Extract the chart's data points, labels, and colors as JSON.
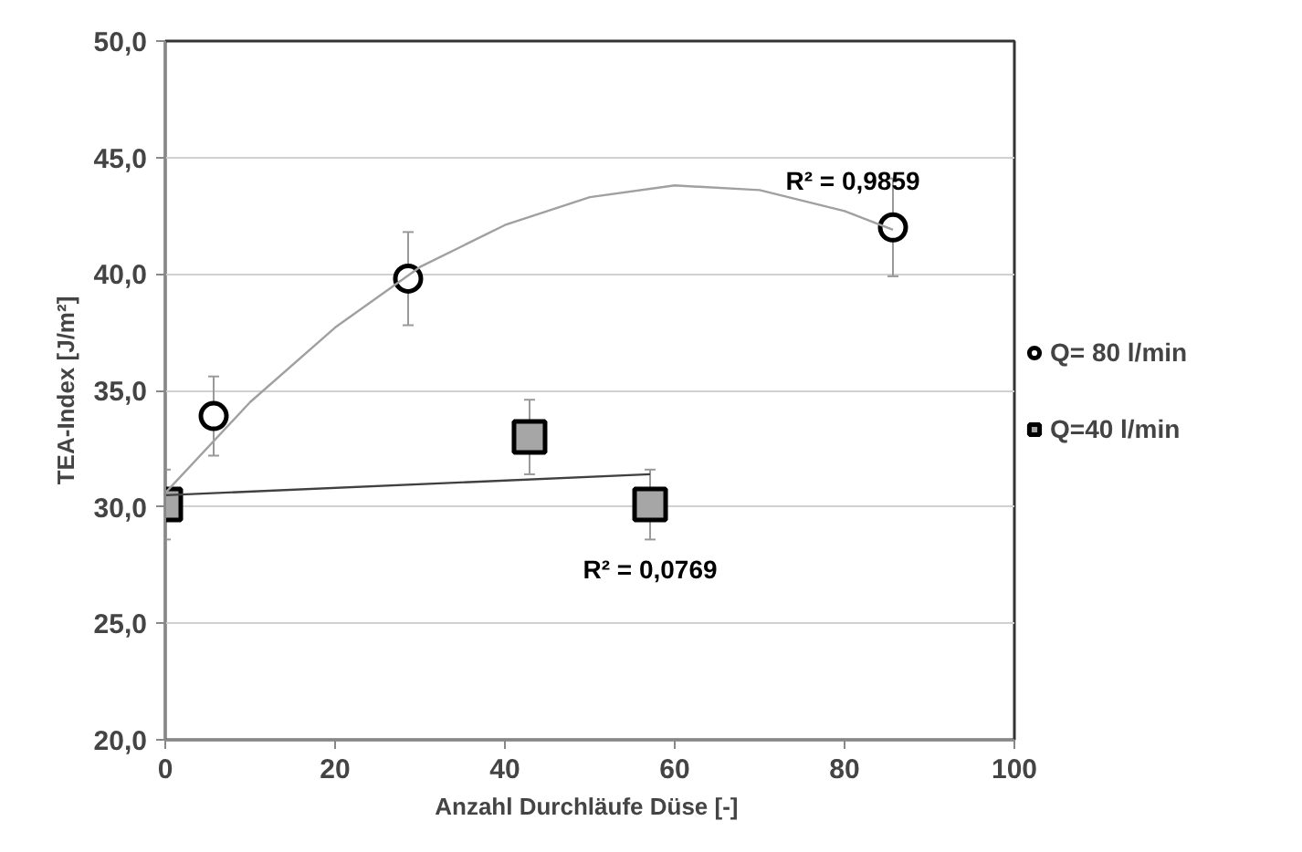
{
  "chart_data": {
    "type": "scatter",
    "xlabel": "Anzahl Durchläufe Düse  [-]",
    "ylabel": "TEA-Index [J/m²]",
    "xlim": [
      0,
      100
    ],
    "xticks": [
      0,
      20,
      40,
      60,
      80,
      100
    ],
    "ylim": [
      20,
      50
    ],
    "yticks": [
      {
        "value": 20,
        "label": "20,0"
      },
      {
        "value": 25,
        "label": "25,0"
      },
      {
        "value": 30,
        "label": "30,0"
      },
      {
        "value": 35,
        "label": "35,0"
      },
      {
        "value": 40,
        "label": "40,0"
      },
      {
        "value": 45,
        "label": "45,0"
      },
      {
        "value": 50,
        "label": "50,0"
      }
    ],
    "grid": "y",
    "legend": "right",
    "series": [
      {
        "name": "Q= 80 l/min",
        "marker": "circle",
        "color": "#ffffff",
        "x": [
          5.7,
          28.6,
          85.7
        ],
        "values": [
          33.9,
          39.8,
          42.0
        ],
        "errors": [
          1.7,
          2.0,
          2.1
        ]
      },
      {
        "name": "Q=40 l/min",
        "marker": "square",
        "color": "#a6a6a6",
        "x": [
          0,
          42.9,
          57.1
        ],
        "values": [
          30.1,
          33.0,
          30.1
        ],
        "errors": [
          1.5,
          1.6,
          1.5
        ]
      },
      {
        "type": "line",
        "color": "#a0a0a0",
        "x": [
          0,
          10,
          20,
          30,
          40,
          50,
          60,
          70,
          80,
          85.7
        ],
        "values": [
          30.6,
          34.5,
          37.7,
          40.3,
          42.1,
          43.3,
          43.8,
          43.6,
          42.7,
          41.9
        ]
      },
      {
        "type": "line",
        "color": "#404040",
        "x": [
          0,
          57.1
        ],
        "values": [
          30.5,
          31.4
        ]
      }
    ],
    "annotations": [
      "R² = 0,9859",
      "R² = 0,0769"
    ]
  }
}
